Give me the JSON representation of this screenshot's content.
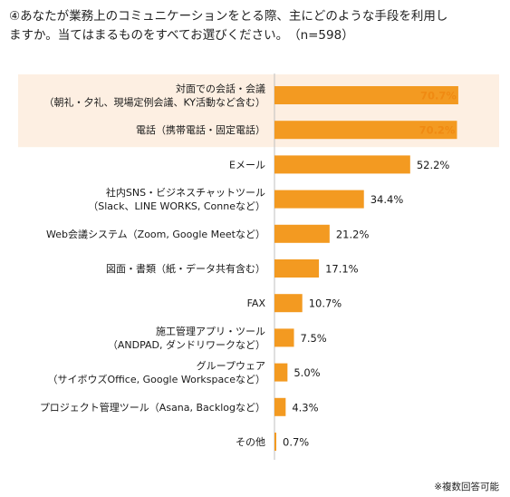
{
  "title": {
    "line1": "④あなたが業務上のコミュニケーションをとる際、主にどのような手段を利用し",
    "line2": "ますか。当てはまるものをすべてお選びください。　（n=598）"
  },
  "footnote": "※複数回答可能",
  "colors": {
    "bar": "#F39A21",
    "highlight_band": "#FDEFE2",
    "highlight_text": "#F08A12",
    "axis": "#BFBFBF"
  },
  "chart_data": {
    "type": "bar",
    "orientation": "horizontal",
    "xlim": [
      0,
      100
    ],
    "categories": [
      [
        "対面での会話・会議",
        "（朝礼・夕礼、現場定例会議、KY活動など含む）"
      ],
      [
        "電話（携帯電話・固定電話）"
      ],
      [
        "Eメール"
      ],
      [
        "社内SNS・ビジネスチャットツール",
        "（Slack、LINE WORKS, Conneなど）"
      ],
      [
        "Web会議システム（Zoom, Google Meetなど）"
      ],
      [
        "図面・書類（紙・データ共有含む）"
      ],
      [
        "FAX"
      ],
      [
        "施工管理アプリ・ツール",
        "（ANDPAD, ダンドリワークなど）"
      ],
      [
        "グループウェア",
        "（サイボウズOffice, Google Workspaceなど）"
      ],
      [
        "プロジェクト管理ツール（Asana, Backlogなど）"
      ],
      [
        "その他"
      ]
    ],
    "values": [
      70.7,
      70.2,
      52.2,
      34.4,
      21.2,
      17.1,
      10.7,
      7.5,
      5.0,
      4.3,
      0.7
    ],
    "value_labels": [
      "70.7%",
      "70.2%",
      "52.2%",
      "34.4%",
      "21.2%",
      "17.1%",
      "10.7%",
      "7.5%",
      "5.0%",
      "4.3%",
      "0.7%"
    ],
    "highlighted": [
      true,
      true,
      false,
      false,
      false,
      false,
      false,
      false,
      false,
      false,
      false
    ]
  }
}
